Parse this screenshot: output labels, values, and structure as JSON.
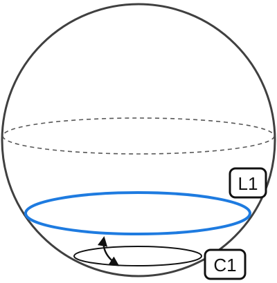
{
  "labels": {
    "l1": "L1",
    "c1": "C1"
  },
  "colors": {
    "outline": "#404040",
    "highlight": "#1e7be0",
    "dashed": "#555555",
    "label_border": "#111111",
    "background": "#ffffff"
  }
}
